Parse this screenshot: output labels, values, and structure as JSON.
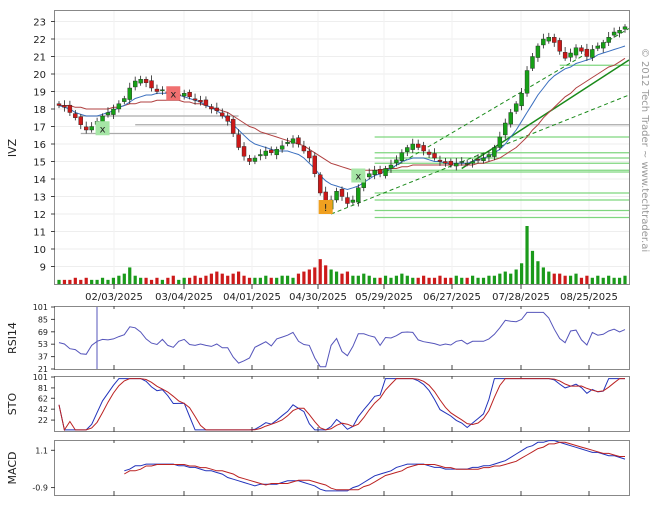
{
  "chart_data": {
    "type": "candlestick",
    "ticker": "IVZ",
    "watermark": "© 2012 Tech Trader ~ www.techtrader.ai",
    "x_labels": [
      "02/03/2025",
      "03/04/2025",
      "04/01/2025",
      "04/30/2025",
      "05/29/2025",
      "06/27/2025",
      "07/28/2025",
      "08/25/2025"
    ],
    "price_panel": {
      "ylim": [
        8,
        23.6
      ],
      "y_ticks": [
        9,
        10,
        11,
        12,
        13,
        14,
        15,
        16,
        17,
        18,
        19,
        20,
        21,
        22,
        23
      ],
      "series_close": [
        18.2,
        18.1,
        17.8,
        17.5,
        17.1,
        16.8,
        17.0,
        17.3,
        17.6,
        17.8,
        18.0,
        18.3,
        18.6,
        19.2,
        19.6,
        19.7,
        19.5,
        19.2,
        19.0,
        19.1,
        18.9,
        18.7,
        18.8,
        18.9,
        18.7,
        18.5,
        18.4,
        18.2,
        18.0,
        17.9,
        17.6,
        17.3,
        16.6,
        15.8,
        15.3,
        15.0,
        15.2,
        15.4,
        15.6,
        15.5,
        15.7,
        15.9,
        16.1,
        16.3,
        16.0,
        15.6,
        15.2,
        14.3,
        13.2,
        12.4,
        12.8,
        13.3,
        13.0,
        12.6,
        12.8,
        13.5,
        14.0,
        14.3,
        14.5,
        14.3,
        14.6,
        14.8,
        15.1,
        15.5,
        15.8,
        16.0,
        15.8,
        15.6,
        15.4,
        15.2,
        15.0,
        14.9,
        14.8,
        14.9,
        15.0,
        14.9,
        15.0,
        15.1,
        15.2,
        15.4,
        15.8,
        16.4,
        17.2,
        17.8,
        18.3,
        18.9,
        20.2,
        21.0,
        21.6,
        22.0,
        22.1,
        21.8,
        21.3,
        20.9,
        21.2,
        21.5,
        21.3,
        21.0,
        21.4,
        21.6,
        21.8,
        22.1,
        22.4,
        22.5,
        22.7
      ],
      "ma_blue": [
        18.2,
        18.1,
        18.0,
        17.8,
        17.7,
        17.6,
        17.6,
        17.6,
        17.7,
        17.8,
        17.9,
        18.1,
        18.2,
        18.4,
        18.6,
        18.7,
        18.8,
        18.8,
        18.9,
        18.9,
        18.9,
        18.9,
        18.8,
        18.7,
        18.6,
        18.5,
        18.4,
        18.2,
        18.1,
        17.9,
        17.7,
        17.4,
        17.1,
        16.8,
        16.5,
        16.2,
        16.0,
        15.9,
        15.8,
        15.7,
        15.6,
        15.6,
        15.6,
        15.5,
        15.4,
        15.2,
        14.9,
        14.6,
        14.2,
        13.9,
        13.7,
        13.6,
        13.5,
        13.4,
        13.5,
        13.6,
        13.8,
        14.0,
        14.2,
        14.3,
        14.5,
        14.6,
        14.8,
        15.0,
        15.1,
        15.2,
        15.2,
        15.2,
        15.1,
        15.0,
        15.0,
        14.9,
        14.9,
        14.9,
        14.9,
        14.9,
        15.0,
        15.1,
        15.2,
        15.3,
        15.5,
        15.7,
        16.0,
        16.4,
        16.8,
        17.3,
        17.8,
        18.3,
        18.8,
        19.2,
        19.6,
        19.9,
        20.1,
        20.3,
        20.4,
        20.6,
        20.7,
        20.8,
        20.9,
        21.1,
        21.2,
        21.3,
        21.4,
        21.5,
        21.6
      ],
      "ma_red": [
        18.2,
        18.2,
        18.2,
        18.1,
        18.1,
        18.0,
        18.0,
        18.0,
        18.0,
        18.0,
        18.1,
        18.1,
        18.2,
        18.3,
        18.3,
        18.4,
        18.4,
        18.4,
        18.5,
        18.5,
        18.5,
        18.5,
        18.5,
        18.4,
        18.4,
        18.3,
        18.3,
        18.2,
        18.1,
        18.0,
        17.9,
        17.8,
        17.6,
        17.4,
        17.2,
        17.0,
        16.9,
        16.7,
        16.6,
        16.5,
        16.4,
        16.3,
        16.2,
        16.1,
        16.0,
        15.9,
        15.7,
        15.5,
        15.3,
        15.1,
        14.9,
        14.8,
        14.7,
        14.6,
        14.5,
        14.5,
        14.5,
        14.5,
        14.5,
        14.5,
        14.6,
        14.6,
        14.6,
        14.7,
        14.7,
        14.8,
        14.8,
        14.8,
        14.8,
        14.8,
        14.8,
        14.8,
        14.8,
        14.8,
        14.8,
        14.8,
        14.8,
        14.9,
        14.9,
        15.0,
        15.1,
        15.2,
        15.4,
        15.6,
        15.8,
        16.1,
        16.4,
        16.8,
        17.1,
        17.5,
        17.8,
        18.1,
        18.4,
        18.7,
        18.9,
        19.2,
        19.4,
        19.6,
        19.8,
        20.0,
        20.2,
        20.4,
        20.5,
        20.7,
        20.9
      ],
      "volume": [
        2,
        2,
        2,
        3,
        2,
        3,
        2,
        2,
        3,
        2,
        3,
        4,
        5,
        8,
        4,
        3,
        3,
        2,
        3,
        2,
        3,
        4,
        2,
        3,
        3,
        4,
        3,
        4,
        5,
        6,
        5,
        4,
        5,
        6,
        4,
        3,
        3,
        3,
        4,
        3,
        3,
        4,
        4,
        3,
        5,
        6,
        7,
        8,
        12,
        9,
        7,
        6,
        5,
        6,
        4,
        4,
        5,
        4,
        3,
        3,
        4,
        3,
        4,
        5,
        4,
        3,
        3,
        4,
        3,
        3,
        4,
        3,
        3,
        4,
        3,
        3,
        4,
        3,
        3,
        4,
        4,
        5,
        6,
        5,
        7,
        10,
        28,
        16,
        11,
        8,
        6,
        5,
        5,
        4,
        4,
        5,
        3,
        4,
        3,
        4,
        3,
        4,
        3,
        3,
        4
      ],
      "h_levels": [
        17.1,
        16.4,
        15.5,
        15.2,
        14.9,
        14.5,
        14.4,
        13.2,
        12.8,
        12.2,
        11.8
      ]
    },
    "rsi_panel": {
      "label": "RSI14",
      "y_ticks": [
        21,
        37,
        53,
        69,
        85,
        101
      ]
    },
    "sto_panel": {
      "label": "STO",
      "y_ticks": [
        22,
        42,
        62,
        81,
        101
      ]
    },
    "macd_panel": {
      "label": "MACD",
      "y_ticks": [
        -0.9,
        1.1
      ]
    },
    "markers": [
      {
        "type": "x-red",
        "label": "x"
      },
      {
        "type": "x-green",
        "label": "x"
      },
      {
        "type": "x-green",
        "label": "x"
      },
      {
        "type": "warn-orange",
        "label": "!"
      }
    ]
  }
}
